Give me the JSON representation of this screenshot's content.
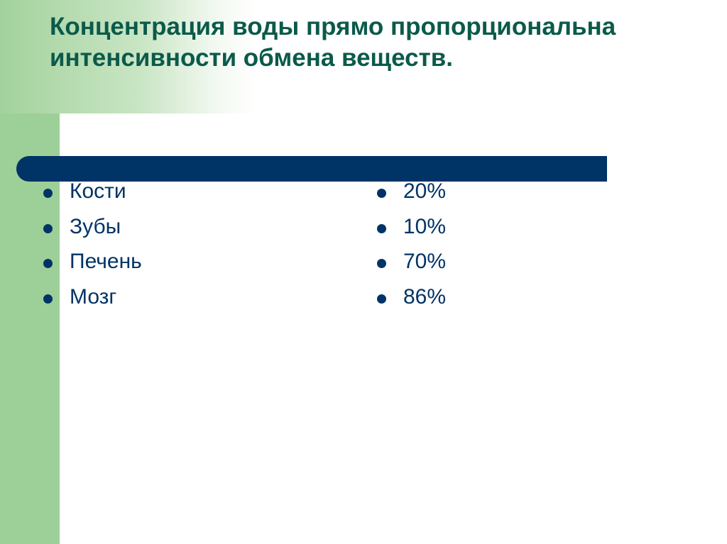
{
  "slide": {
    "title": "Концентрация воды прямо пропорциональна интенсивности обмена веществ.",
    "organs": [
      "Кости",
      "Зубы",
      "Печень",
      "Мозг"
    ],
    "percents": [
      "20%",
      "10%",
      "70%",
      "86%"
    ]
  },
  "colors": {
    "title": "#0b5a4a",
    "accent_band": "#9dcf98",
    "divider": "#003366",
    "text": "#003366"
  }
}
